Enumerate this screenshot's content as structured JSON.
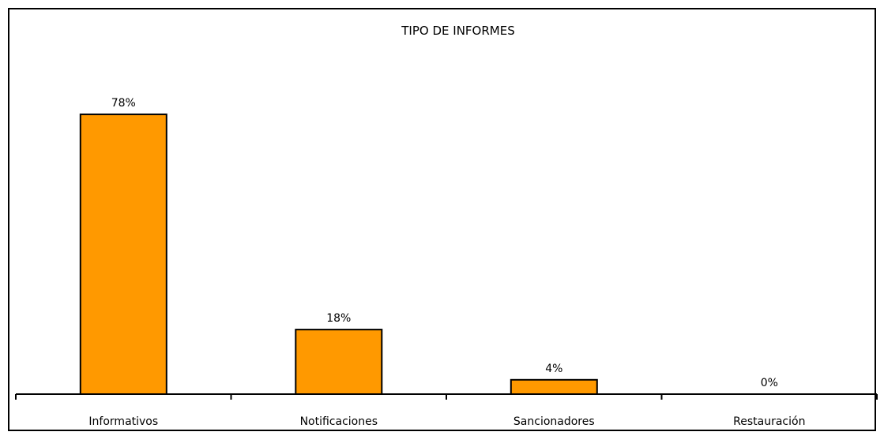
{
  "chart_data": {
    "type": "bar",
    "title": "TIPO DE INFORMES",
    "categories": [
      "Informativos",
      "Notificaciones",
      "Sancionadores",
      "Restauración"
    ],
    "values": [
      78,
      18,
      4,
      0
    ],
    "value_labels": [
      "78%",
      "18%",
      "4%",
      "0%"
    ],
    "unit": "%",
    "ylim": [
      0,
      100
    ],
    "xlabel": "",
    "ylabel": "",
    "grid": false,
    "legend": "none",
    "bar_color": "#FF9900",
    "bar_edge_color": "#000000"
  }
}
